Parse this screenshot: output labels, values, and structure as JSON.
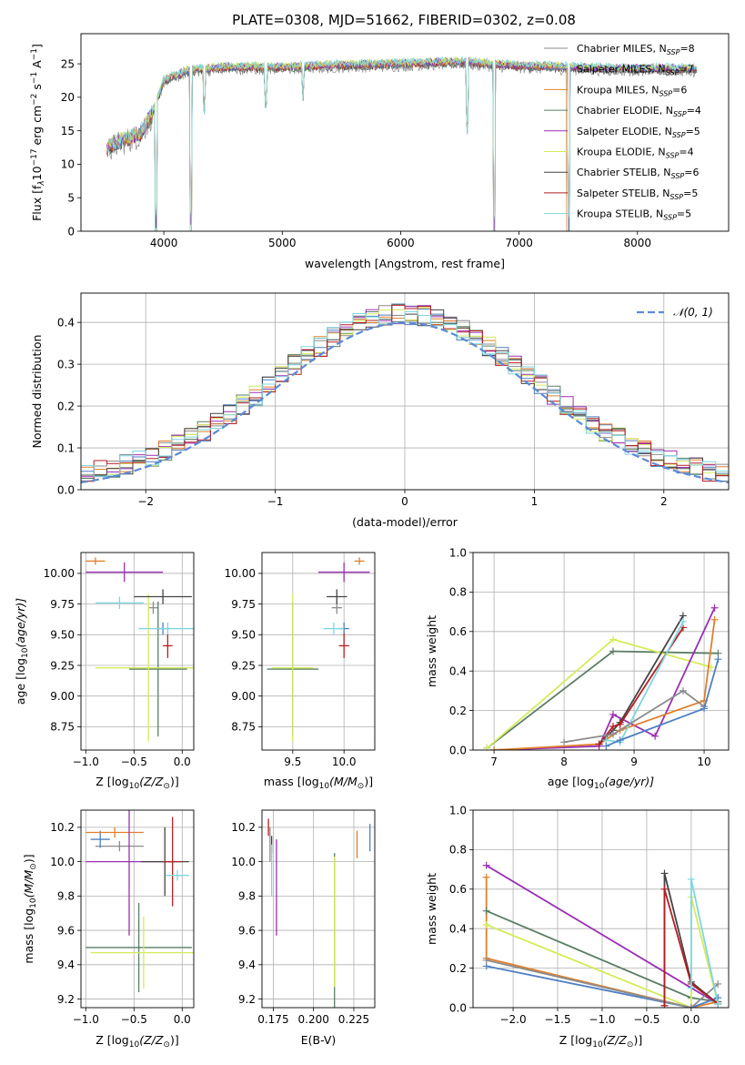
{
  "figure": {
    "title": "PLATE=0308, MJD=51662, FIBERID=0302, z=0.08"
  },
  "models": [
    {
      "name": "Chabrier MILES",
      "nssp": "8",
      "color": "#8c8c8c"
    },
    {
      "name": "Salpeter MILES",
      "nssp": "7",
      "color": "#4f7fc4"
    },
    {
      "name": "Kroupa MILES",
      "nssp": "6",
      "color": "#e0802b"
    },
    {
      "name": "Chabrier ELODIE",
      "nssp": "4",
      "color": "#5a7e66"
    },
    {
      "name": "Salpeter ELODIE",
      "nssp": "5",
      "color": "#9b30b4"
    },
    {
      "name": "Kroupa ELODIE",
      "nssp": "4",
      "color": "#d4ec5a"
    },
    {
      "name": "Chabrier STELIB",
      "nssp": "6",
      "color": "#444444"
    },
    {
      "name": "Salpeter STELIB",
      "nssp": "5",
      "color": "#b51e25"
    },
    {
      "name": "Kroupa STELIB",
      "nssp": "5",
      "color": "#7fd6df"
    }
  ],
  "chart_data": [
    {
      "id": "spectrum",
      "type": "line",
      "xlabel": "wavelength [Angstrom, rest frame]",
      "ylabel_main": "Flux [f",
      "ylabel_sub": "λ",
      "ylabel_rest": "10",
      "ylabel_sup1": "−17",
      "ylabel_unit": " erg cm",
      "ylabel_sup2": "−2",
      "ylabel_s": " s",
      "ylabel_sup3": "−1",
      "ylabel_end": " A",
      "ylabel_sup4": "−1",
      "ylabel_close": "]",
      "xlim": [
        3300,
        8770
      ],
      "ylim": [
        0,
        29.5
      ],
      "xticks": [
        4000,
        5000,
        6000,
        7000,
        8000
      ],
      "yticks": [
        0,
        5,
        10,
        15,
        20,
        25
      ],
      "legend_placement": "right",
      "continuum_points": [
        [
          3520,
          12.5
        ],
        [
          3650,
          13.5
        ],
        [
          3800,
          14.5
        ],
        [
          3900,
          17.5
        ],
        [
          4000,
          22.5
        ],
        [
          4200,
          24.0
        ],
        [
          4500,
          24.5
        ],
        [
          5000,
          24.5
        ],
        [
          5500,
          24.8
        ],
        [
          6000,
          25.0
        ],
        [
          6500,
          25.3
        ],
        [
          7000,
          24.7
        ],
        [
          7400,
          24.5
        ],
        [
          7800,
          24.3
        ],
        [
          8200,
          24.3
        ],
        [
          8500,
          24.2
        ]
      ],
      "absorption_features": [
        [
          3933,
          0.0
        ],
        [
          4226,
          0.0
        ],
        [
          4340,
          16.5
        ],
        [
          4861,
          17.0
        ],
        [
          5175,
          19.0
        ],
        [
          6563,
          14.0
        ],
        [
          6790,
          0.0
        ],
        [
          7420,
          0.0
        ]
      ]
    },
    {
      "id": "residuals",
      "type": "histogram",
      "xlabel": "(data-model)/error",
      "ylabel": "Normed distribution",
      "xlim": [
        -2.5,
        2.5
      ],
      "ylim": [
        0,
        0.47
      ],
      "xticks": [
        -2,
        -1,
        0,
        1,
        2
      ],
      "yticks": [
        0.0,
        0.1,
        0.2,
        0.3,
        0.4
      ],
      "grid": true,
      "reference_curve": {
        "label": "𝒩(0, 1)",
        "mean": 0,
        "sigma": 1,
        "color": "#5b8bd6"
      },
      "bin_width": 0.1,
      "envelope": "0.4*exp(-x^2/2)"
    },
    {
      "id": "age_vs_Z",
      "type": "errorbar",
      "xlabel": "Z [log",
      "xlabel_sub": "10",
      "xlabel_rest": "(Z/Z",
      "xlabel_sun": "⊙",
      "xlabel_end": ")]",
      "ylabel": "age  [log",
      "ylabel_sub": "10",
      "ylabel_rest": "(age/yr)]",
      "xlim": [
        -1.05,
        0.12
      ],
      "ylim": [
        8.56,
        10.17
      ],
      "xticks": [
        -1.0,
        -0.5,
        0.0
      ],
      "yticks": [
        8.75,
        9.0,
        9.25,
        9.5,
        9.75,
        10.0
      ],
      "grid": true,
      "points": [
        {
          "model": 0,
          "x": -0.3,
          "xerr": 0.05,
          "y": 9.72,
          "yerr": 0.05
        },
        {
          "model": 1,
          "x": -0.2,
          "xerr": 0.07,
          "y": 9.55,
          "yerr": 0.05
        },
        {
          "model": 2,
          "x": -0.9,
          "xerr": 0.1,
          "y": 10.1,
          "yerr": 0.03
        },
        {
          "model": 3,
          "x": -0.25,
          "xerr": 0.3,
          "y": 9.22,
          "yerr": 0.55
        },
        {
          "model": 4,
          "x": -0.6,
          "xerr": 0.4,
          "y": 10.01,
          "yerr": 0.08
        },
        {
          "model": 5,
          "x": -0.35,
          "xerr": 0.55,
          "y": 9.23,
          "yerr": 0.6
        },
        {
          "model": 6,
          "x": -0.2,
          "xerr": 0.3,
          "y": 9.81,
          "yerr": 0.06
        },
        {
          "model": 7,
          "x": -0.15,
          "xerr": 0.05,
          "y": 9.41,
          "yerr": 0.1
        },
        {
          "model": 8,
          "x": -0.15,
          "xerr": 0.3,
          "y": 9.55,
          "yerr": 0.05
        },
        {
          "model": 8,
          "x": -0.65,
          "xerr": 0.25,
          "y": 9.76,
          "yerr": 0.05
        }
      ]
    },
    {
      "id": "age_vs_mass",
      "type": "errorbar",
      "xlabel": "mass [log",
      "xlabel_sub": "10",
      "xlabel_rest": "(M/M",
      "xlabel_sun": "⊙",
      "xlabel_end": ")]",
      "xlim": [
        9.2,
        10.3
      ],
      "ylim": [
        8.56,
        10.17
      ],
      "xticks": [
        9.5,
        10.0
      ],
      "yticks": [
        8.75,
        9.0,
        9.25,
        9.5,
        9.75,
        10.0
      ],
      "grid": true,
      "points": [
        {
          "model": 0,
          "x": 9.93,
          "xerr": 0.05,
          "y": 9.72,
          "yerr": 0.05
        },
        {
          "model": 1,
          "x": 10.0,
          "xerr": 0.05,
          "y": 9.55,
          "yerr": 0.05
        },
        {
          "model": 2,
          "x": 10.15,
          "xerr": 0.05,
          "y": 10.1,
          "yerr": 0.03
        },
        {
          "model": 3,
          "x": 9.5,
          "xerr": 0.25,
          "y": 9.22,
          "yerr": 0.55
        },
        {
          "model": 4,
          "x": 10.0,
          "xerr": 0.25,
          "y": 10.01,
          "yerr": 0.08
        },
        {
          "model": 5,
          "x": 9.5,
          "xerr": 0.2,
          "y": 9.23,
          "yerr": 0.6
        },
        {
          "model": 6,
          "x": 9.93,
          "xerr": 0.1,
          "y": 9.81,
          "yerr": 0.06
        },
        {
          "model": 7,
          "x": 10.0,
          "xerr": 0.05,
          "y": 9.41,
          "yerr": 0.1
        },
        {
          "model": 8,
          "x": 9.9,
          "xerr": 0.1,
          "y": 9.55,
          "yerr": 0.05
        }
      ]
    },
    {
      "id": "mass_weight_vs_age",
      "type": "line",
      "xlabel": "age  [log",
      "xlabel_sub": "10",
      "xlabel_rest": "(age/yr)]",
      "ylabel": "mass weight",
      "xlim": [
        6.7,
        10.35
      ],
      "ylim": [
        0,
        1
      ],
      "xticks": [
        7,
        8,
        9,
        10
      ],
      "yticks": [
        0.0,
        0.2,
        0.4,
        0.6,
        0.8,
        1.0
      ],
      "grid": true,
      "series": [
        {
          "model": 3,
          "x": [
            6.9,
            8.7,
            10.2
          ],
          "y": [
            0.01,
            0.5,
            0.49
          ]
        },
        {
          "model": 5,
          "x": [
            6.9,
            8.7,
            10.1
          ],
          "y": [
            0.01,
            0.56,
            0.42
          ]
        },
        {
          "model": 4,
          "x": [
            7.0,
            8.5,
            8.7,
            9.3,
            10.15
          ],
          "y": [
            0.0,
            0.02,
            0.18,
            0.07,
            0.72
          ]
        },
        {
          "model": 2,
          "x": [
            7.0,
            8.5,
            8.8,
            10.0,
            10.15
          ],
          "y": [
            0.0,
            0.03,
            0.1,
            0.25,
            0.66
          ]
        },
        {
          "model": 6,
          "x": [
            8.5,
            8.7,
            8.8,
            9.7
          ],
          "y": [
            0.03,
            0.1,
            0.14,
            0.68
          ]
        },
        {
          "model": 7,
          "x": [
            8.5,
            8.7,
            8.8,
            9.7
          ],
          "y": [
            0.03,
            0.12,
            0.13,
            0.62
          ]
        },
        {
          "model": 8,
          "x": [
            8.6,
            8.8,
            9.7
          ],
          "y": [
            0.05,
            0.04,
            0.65
          ]
        },
        {
          "model": 0,
          "x": [
            8.0,
            8.7,
            9.7,
            10.0
          ],
          "y": [
            0.04,
            0.08,
            0.3,
            0.22
          ]
        },
        {
          "model": 1,
          "x": [
            8.6,
            8.8,
            10.0,
            10.2
          ],
          "y": [
            0.02,
            0.05,
            0.21,
            0.46
          ]
        }
      ]
    },
    {
      "id": "mass_vs_Z",
      "type": "errorbar",
      "xlabel": "Z [log",
      "xlabel_sub": "10",
      "xlabel_rest": "(Z/Z",
      "xlabel_sun": "⊙",
      "xlabel_end": ")]",
      "ylabel": "mass [log",
      "ylabel_sub": "10",
      "ylabel_rest": "(M/M",
      "ylabel_sun": "⊙",
      "ylabel_end": ")]",
      "xlim": [
        -1.05,
        0.12
      ],
      "ylim": [
        9.15,
        10.3
      ],
      "xticks": [
        -1.0,
        -0.5,
        0.0
      ],
      "yticks": [
        9.2,
        9.4,
        9.6,
        9.8,
        10.0,
        10.2
      ],
      "grid": true,
      "points": [
        {
          "model": 0,
          "x": -0.65,
          "xerr": 0.25,
          "y": 10.09,
          "yerr": 0.03
        },
        {
          "model": 1,
          "x": -0.85,
          "xerr": 0.1,
          "y": 10.13,
          "yerr": 0.05
        },
        {
          "model": 2,
          "x": -0.7,
          "xerr": 0.3,
          "y": 10.17,
          "yerr": 0.03
        },
        {
          "model": 3,
          "x": -0.45,
          "xerr": 0.55,
          "y": 9.5,
          "yerr": 0.26
        },
        {
          "model": 4,
          "x": -0.55,
          "xerr": 0.45,
          "y": 10.0,
          "yerr": 0.43
        },
        {
          "model": 5,
          "x": -0.4,
          "xerr": 0.55,
          "y": 9.47,
          "yerr": 0.21
        },
        {
          "model": 6,
          "x": -0.18,
          "xerr": 0.25,
          "y": 10.0,
          "yerr": 0.2
        },
        {
          "model": 7,
          "x": -0.1,
          "xerr": 0.1,
          "y": 10.0,
          "yerr": 0.26
        },
        {
          "model": 8,
          "x": -0.05,
          "xerr": 0.12,
          "y": 9.92,
          "yerr": 0.03
        }
      ]
    },
    {
      "id": "mass_vs_ebv",
      "type": "errorbar",
      "xlabel": "E(B-V)",
      "xlim": [
        0.168,
        0.238
      ],
      "ylim": [
        9.15,
        10.3
      ],
      "xticks": [
        0.175,
        0.2,
        0.225
      ],
      "yticks": [
        9.2,
        9.4,
        9.6,
        9.8,
        10.0,
        10.2
      ],
      "grid": true,
      "points": [
        {
          "model": 0,
          "x": 0.173,
          "xerr": 0,
          "y": 10.1,
          "yerr": 0.1
        },
        {
          "model": 1,
          "x": 0.235,
          "xerr": 0,
          "y": 10.14,
          "yerr": 0.08
        },
        {
          "model": 2,
          "x": 0.227,
          "xerr": 0,
          "y": 10.1,
          "yerr": 0.08
        },
        {
          "model": 3,
          "x": 0.213,
          "xerr": 0,
          "y": 9.6,
          "yerr": 0.45
        },
        {
          "model": 4,
          "x": 0.177,
          "xerr": 0,
          "y": 9.85,
          "yerr": 0.28
        },
        {
          "model": 5,
          "x": 0.213,
          "xerr": 0,
          "y": 9.65,
          "yerr": 0.38
        },
        {
          "model": 6,
          "x": 0.174,
          "xerr": 0,
          "y": 10.1,
          "yerr": 0.05
        },
        {
          "model": 7,
          "x": 0.172,
          "xerr": 0,
          "y": 10.2,
          "yerr": 0.05
        },
        {
          "model": 8,
          "x": 0.174,
          "xerr": 0,
          "y": 9.95,
          "yerr": 0.15
        }
      ]
    },
    {
      "id": "mass_weight_vs_Z",
      "type": "line",
      "xlabel": "Z [log",
      "xlabel_sub": "10",
      "xlabel_rest": "(Z/Z",
      "xlabel_sun": "⊙",
      "xlabel_end": ")]",
      "ylabel": "mass weight",
      "xlim": [
        -2.45,
        0.42
      ],
      "ylim": [
        0,
        1
      ],
      "xticks": [
        -2.0,
        -1.5,
        -1.0,
        -0.5,
        0.0
      ],
      "yticks": [
        0.0,
        0.2,
        0.4,
        0.6,
        0.8,
        1.0
      ],
      "grid": true,
      "series": [
        {
          "model": 4,
          "x": [
            -2.3,
            0.0,
            0.3
          ],
          "y": [
            0.72,
            0.1,
            0.02
          ]
        },
        {
          "model": 2,
          "x": [
            -2.3,
            -2.3,
            0.0,
            0.3
          ],
          "y": [
            0.66,
            0.25,
            0.0,
            0.03
          ]
        },
        {
          "model": 3,
          "x": [
            -2.3,
            0.0,
            0.3
          ],
          "y": [
            0.49,
            0.05,
            0.03
          ]
        },
        {
          "model": 5,
          "x": [
            -2.3,
            0.0,
            0.0,
            0.3
          ],
          "y": [
            0.42,
            0.0,
            0.56,
            0.02
          ]
        },
        {
          "model": 1,
          "x": [
            -2.3,
            0.0,
            0.3
          ],
          "y": [
            0.21,
            0.0,
            0.05
          ]
        },
        {
          "model": 0,
          "x": [
            -2.3,
            0.0,
            0.3
          ],
          "y": [
            0.24,
            0.0,
            0.12
          ]
        },
        {
          "model": 6,
          "x": [
            -0.3,
            -0.3,
            0.0,
            0.3
          ],
          "y": [
            0.01,
            0.68,
            0.13,
            0.02
          ]
        },
        {
          "model": 7,
          "x": [
            -0.3,
            -0.3,
            0.0,
            0.3
          ],
          "y": [
            0.01,
            0.6,
            0.12,
            0.02
          ]
        },
        {
          "model": 8,
          "x": [
            0.0,
            0.0,
            0.3
          ],
          "y": [
            0.1,
            0.65,
            0.02
          ]
        }
      ]
    }
  ]
}
